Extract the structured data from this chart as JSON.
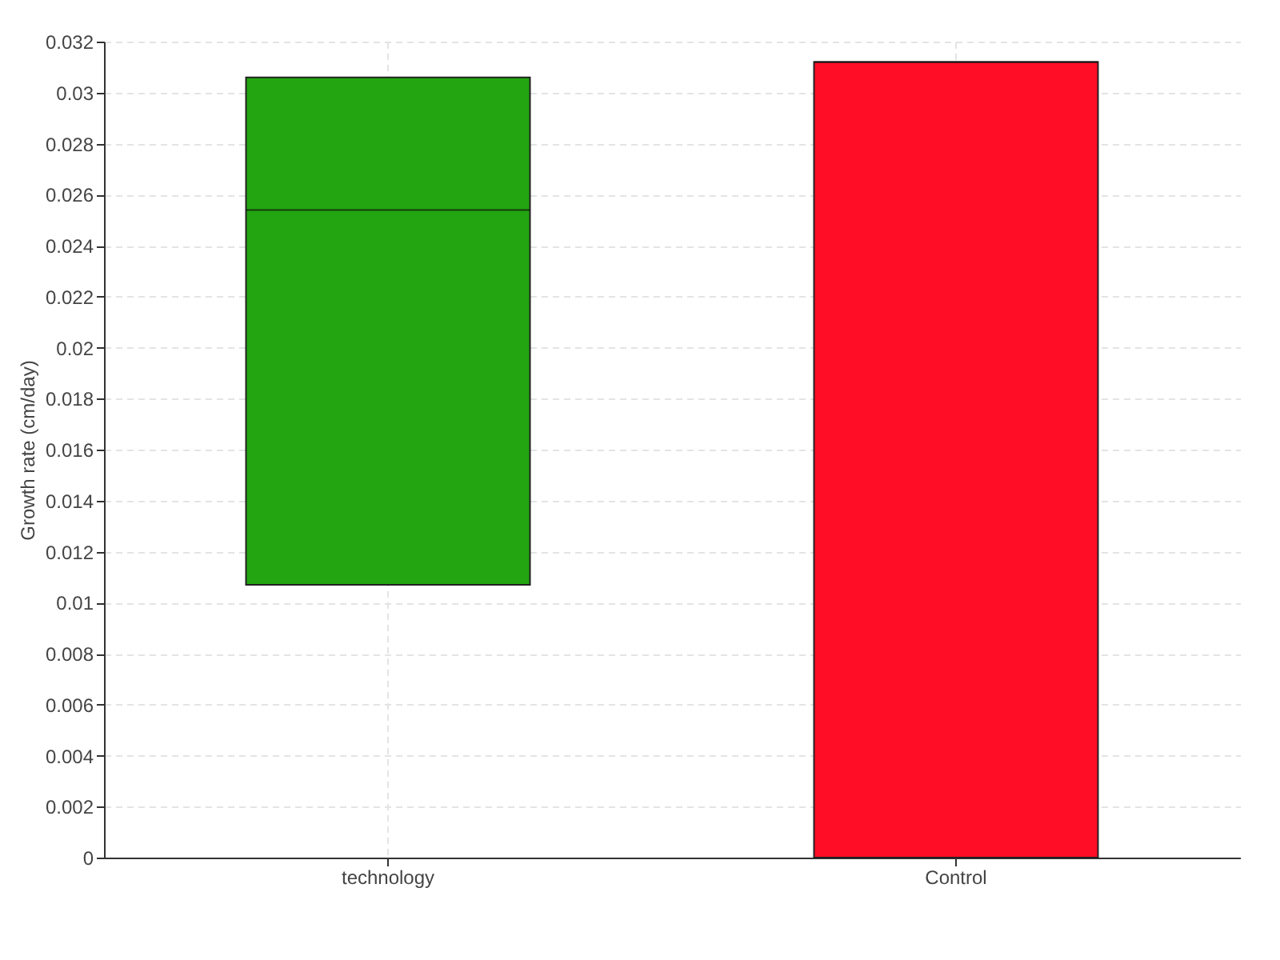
{
  "chart_data": {
    "type": "box",
    "ylabel": "Growth rate (cm/day)",
    "categories": [
      "technology",
      "Control"
    ],
    "boxes": [
      {
        "low": 0.0107,
        "q1": 0.0107,
        "median": 0.0254,
        "q3": 0.0306,
        "high": 0.0306
      },
      {
        "low": 0,
        "q1": 0,
        "median": 0.0312,
        "q3": 0.0312,
        "high": 0.0312
      }
    ],
    "colors": [
      "#22a510",
      "#ff0c26"
    ],
    "ylim": [
      0,
      0.032
    ],
    "yticks": [
      0,
      0.002,
      0.004,
      0.006,
      0.008,
      0.01,
      0.012,
      0.014,
      0.016,
      0.018,
      0.02,
      0.022,
      0.024,
      0.026,
      0.028,
      0.03,
      0.032
    ],
    "grid": true
  }
}
